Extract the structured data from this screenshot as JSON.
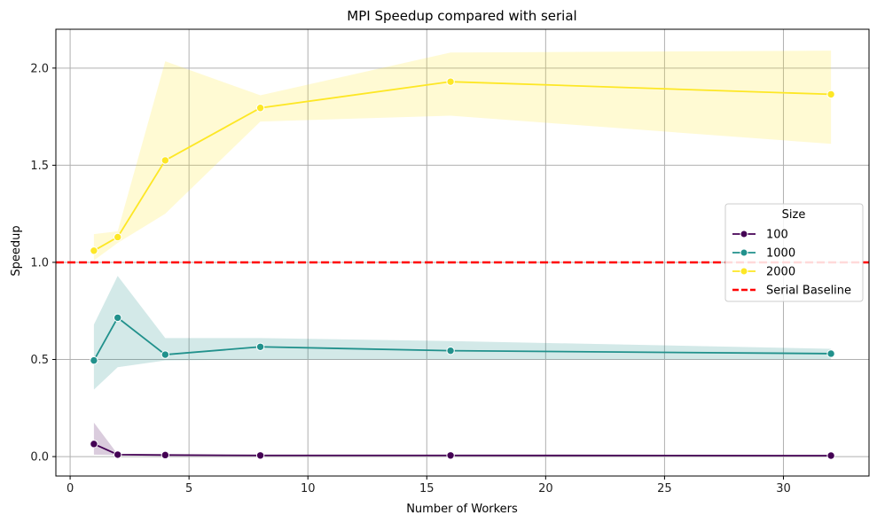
{
  "chart_data": {
    "type": "line",
    "title": "MPI Speedup compared with serial",
    "xlabel": "Number of Workers",
    "ylabel": "Speedup",
    "xlim": [
      -0.6,
      33.6
    ],
    "ylim": [
      -0.1,
      2.2
    ],
    "xticks": [
      0,
      5,
      10,
      15,
      20,
      25,
      30
    ],
    "xtick_labels": [
      "0",
      "5",
      "10",
      "15",
      "20",
      "25",
      "30"
    ],
    "yticks": [
      0.0,
      0.5,
      1.0,
      1.5,
      2.0
    ],
    "ytick_labels": [
      "0.0",
      "0.5",
      "1.0",
      "1.5",
      "2.0"
    ],
    "grid": true,
    "legend": {
      "title": "Size",
      "placement": "center-right"
    },
    "x": [
      1,
      2,
      4,
      8,
      16,
      32
    ],
    "series": [
      {
        "name": "100",
        "color": "#440154",
        "values": [
          0.065,
          0.01,
          0.008,
          0.006,
          0.006,
          0.005
        ],
        "ci_low": [
          0.01,
          0.008,
          0.006,
          0.005,
          0.005,
          0.004
        ],
        "ci_high": [
          0.175,
          0.012,
          0.01,
          0.007,
          0.007,
          0.006
        ]
      },
      {
        "name": "1000",
        "color": "#21918c",
        "values": [
          0.495,
          0.715,
          0.525,
          0.565,
          0.545,
          0.53
        ],
        "ci_low": [
          0.345,
          0.46,
          0.495,
          0.5,
          0.5,
          0.5
        ],
        "ci_high": [
          0.68,
          0.93,
          0.61,
          0.61,
          0.595,
          0.555
        ]
      },
      {
        "name": "2000",
        "color": "#fde725",
        "values": [
          1.06,
          1.13,
          1.525,
          1.795,
          1.93,
          1.865
        ],
        "ci_low": [
          1.01,
          1.1,
          1.25,
          1.725,
          1.755,
          1.61
        ],
        "ci_high": [
          1.145,
          1.16,
          2.035,
          1.86,
          2.08,
          2.09
        ]
      }
    ],
    "baseline": {
      "name": "Serial Baseline",
      "value": 1.0,
      "color": "#ff0000",
      "style": "dashed"
    }
  }
}
